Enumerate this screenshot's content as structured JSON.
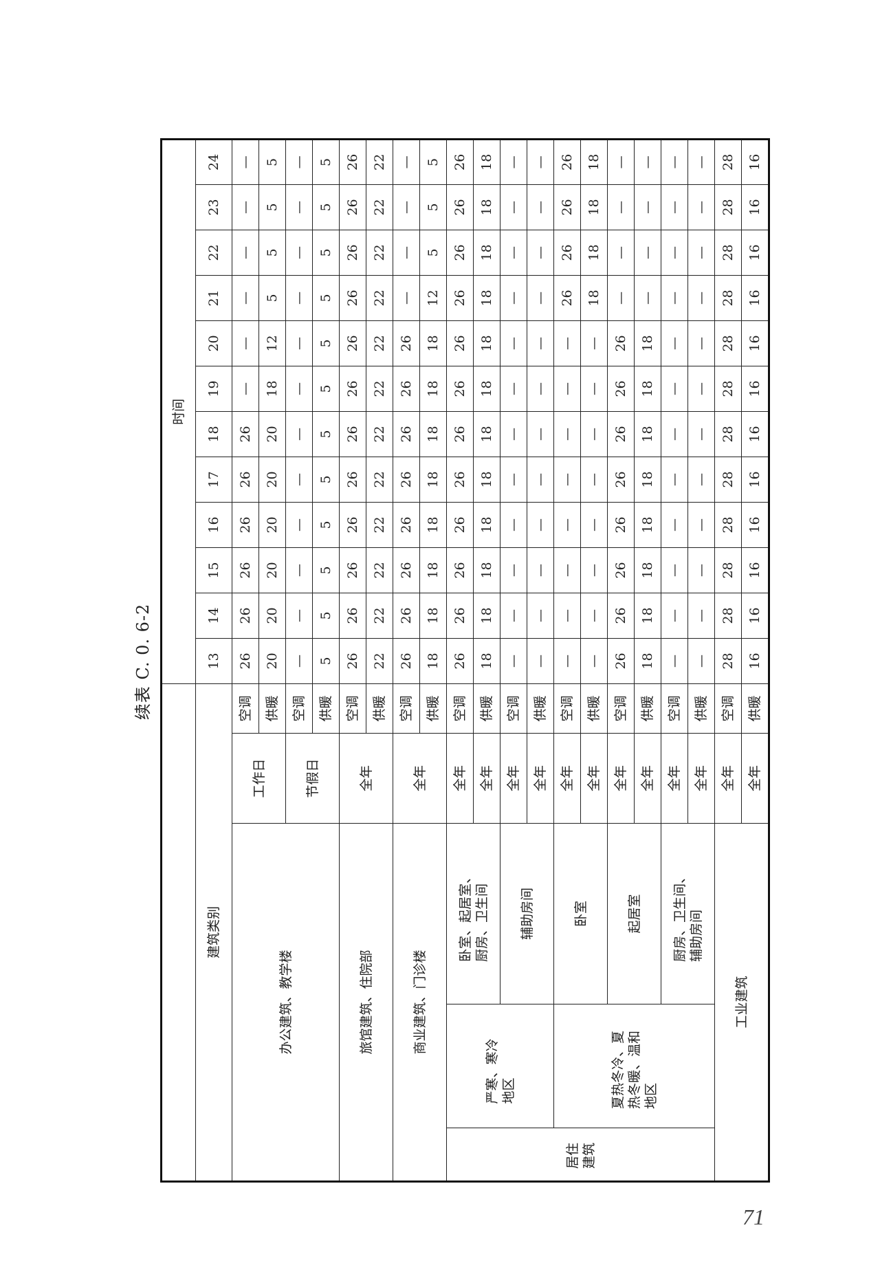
{
  "title": "续表 C. 0. 6-2",
  "page_number": "71",
  "header": {
    "time": "时间",
    "category": "建筑类别",
    "hours": [
      "13",
      "14",
      "15",
      "16",
      "17",
      "18",
      "19",
      "20",
      "21",
      "22",
      "23",
      "24"
    ]
  },
  "categories": {
    "office": "办公建筑、教学楼",
    "workday": "工作日",
    "holiday": "节假日",
    "hotel": "旅馆建筑、住院部",
    "commercial": "商业建筑、门诊楼",
    "residential": "居住建筑",
    "cold_zone": "严寒、寒冷地区",
    "hot_zone": "夏热冬冷、夏热冬暖、温和地区",
    "cold_main_rooms": "卧室、起居室、厨房、卫生间",
    "aux_rooms": "辅助房间",
    "bedroom": "卧室",
    "living_room": "起居室",
    "kitchen_bath_aux": "厨房、卫生间、辅助房间",
    "industrial": "工业建筑",
    "all_year": "全年"
  },
  "rows": [
    {
      "mode": "空调",
      "values": [
        "26",
        "26",
        "26",
        "26",
        "26",
        "26",
        "—",
        "—",
        "—",
        "—",
        "—",
        "—"
      ]
    },
    {
      "mode": "供暖",
      "values": [
        "20",
        "20",
        "20",
        "20",
        "20",
        "20",
        "18",
        "12",
        "5",
        "5",
        "5",
        "5"
      ]
    },
    {
      "mode": "空调",
      "values": [
        "—",
        "—",
        "—",
        "—",
        "—",
        "—",
        "—",
        "—",
        "—",
        "—",
        "—",
        "—"
      ]
    },
    {
      "mode": "供暖",
      "values": [
        "5",
        "5",
        "5",
        "5",
        "5",
        "5",
        "5",
        "5",
        "5",
        "5",
        "5",
        "5"
      ]
    },
    {
      "mode": "空调",
      "values": [
        "26",
        "26",
        "26",
        "26",
        "26",
        "26",
        "26",
        "26",
        "26",
        "26",
        "26",
        "26"
      ]
    },
    {
      "mode": "供暖",
      "values": [
        "22",
        "22",
        "22",
        "22",
        "22",
        "22",
        "22",
        "22",
        "22",
        "22",
        "22",
        "22"
      ]
    },
    {
      "mode": "空调",
      "values": [
        "26",
        "26",
        "26",
        "26",
        "26",
        "26",
        "26",
        "26",
        "—",
        "—",
        "—",
        "—"
      ]
    },
    {
      "mode": "供暖",
      "values": [
        "18",
        "18",
        "18",
        "18",
        "18",
        "18",
        "18",
        "18",
        "12",
        "5",
        "5",
        "5"
      ]
    },
    {
      "mode": "空调",
      "values": [
        "26",
        "26",
        "26",
        "26",
        "26",
        "26",
        "26",
        "26",
        "26",
        "26",
        "26",
        "26"
      ]
    },
    {
      "mode": "供暖",
      "values": [
        "18",
        "18",
        "18",
        "18",
        "18",
        "18",
        "18",
        "18",
        "18",
        "18",
        "18",
        "18"
      ]
    },
    {
      "mode": "空调",
      "values": [
        "—",
        "—",
        "—",
        "—",
        "—",
        "—",
        "—",
        "—",
        "—",
        "—",
        "—",
        "—"
      ]
    },
    {
      "mode": "供暖",
      "values": [
        "—",
        "—",
        "—",
        "—",
        "—",
        "—",
        "—",
        "—",
        "—",
        "—",
        "—",
        "—"
      ]
    },
    {
      "mode": "空调",
      "values": [
        "—",
        "—",
        "—",
        "—",
        "—",
        "—",
        "—",
        "—",
        "26",
        "26",
        "26",
        "26"
      ]
    },
    {
      "mode": "供暖",
      "values": [
        "—",
        "—",
        "—",
        "—",
        "—",
        "—",
        "—",
        "—",
        "18",
        "18",
        "18",
        "18"
      ]
    },
    {
      "mode": "空调",
      "values": [
        "26",
        "26",
        "26",
        "26",
        "26",
        "26",
        "26",
        "26",
        "—",
        "—",
        "—",
        "—"
      ]
    },
    {
      "mode": "供暖",
      "values": [
        "18",
        "18",
        "18",
        "18",
        "18",
        "18",
        "18",
        "18",
        "—",
        "—",
        "—",
        "—"
      ]
    },
    {
      "mode": "空调",
      "values": [
        "—",
        "—",
        "—",
        "—",
        "—",
        "—",
        "—",
        "—",
        "—",
        "—",
        "—",
        "—"
      ]
    },
    {
      "mode": "供暖",
      "values": [
        "—",
        "—",
        "—",
        "—",
        "—",
        "—",
        "—",
        "—",
        "—",
        "—",
        "—",
        "—"
      ]
    },
    {
      "mode": "空调",
      "values": [
        "28",
        "28",
        "28",
        "28",
        "28",
        "28",
        "28",
        "28",
        "28",
        "28",
        "28",
        "28"
      ]
    },
    {
      "mode": "供暖",
      "values": [
        "16",
        "16",
        "16",
        "16",
        "16",
        "16",
        "16",
        "16",
        "16",
        "16",
        "16",
        "16"
      ]
    }
  ]
}
